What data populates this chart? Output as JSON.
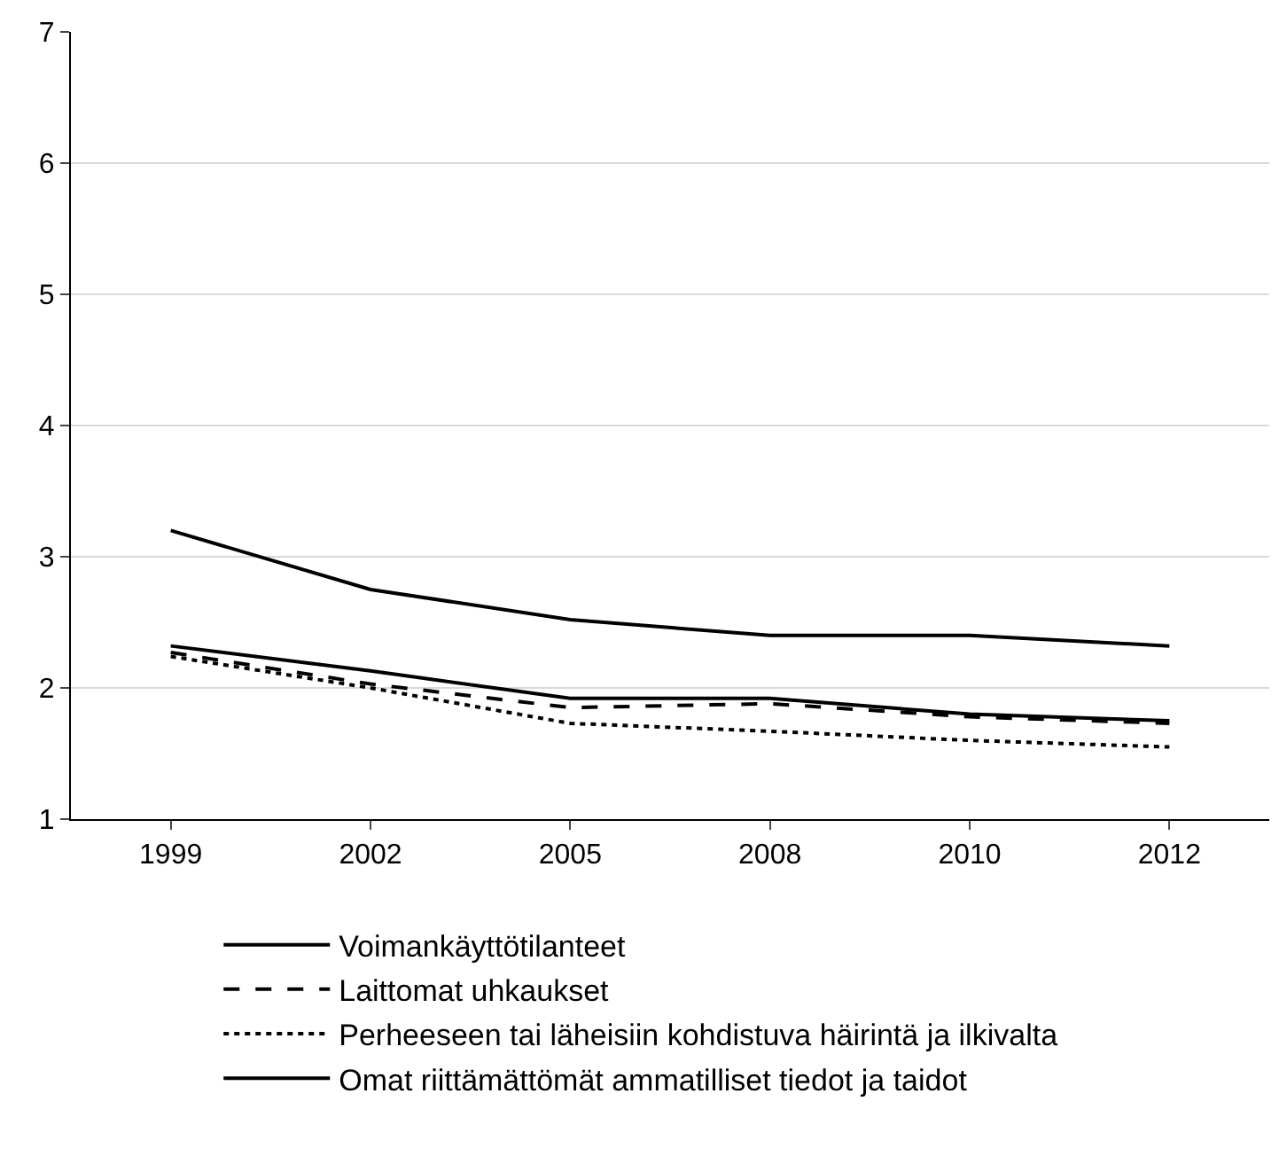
{
  "chart_data": {
    "type": "line",
    "categories": [
      "1999",
      "2002",
      "2005",
      "2008",
      "2010",
      "2012"
    ],
    "series": [
      {
        "name": "Voimankäyttötilanteet",
        "color": "#000000",
        "line_style": "solid",
        "values": [
          2.32,
          2.13,
          1.92,
          1.92,
          1.8,
          1.75
        ]
      },
      {
        "name": "Laittomat uhkaukset",
        "color": "#000000",
        "line_style": "dashed",
        "values": [
          2.27,
          2.03,
          1.85,
          1.88,
          1.78,
          1.73
        ]
      },
      {
        "name": "Perheeseen tai läheisiin kohdistuva häirintä ja ilkivalta",
        "color": "#000000",
        "line_style": "dotted",
        "values": [
          2.24,
          2.0,
          1.73,
          1.67,
          1.6,
          1.55
        ]
      },
      {
        "name": "Omat riittämättömät ammatilliset tiedot ja taidot",
        "color": "#000000",
        "line_style": "solid",
        "values": [
          3.2,
          2.75,
          2.52,
          2.4,
          2.4,
          2.32
        ]
      }
    ],
    "ylim": [
      1,
      7
    ],
    "yticks": [
      1,
      2,
      3,
      4,
      5,
      6,
      7
    ],
    "grid": "y",
    "legend": "bottom",
    "marker": "none"
  }
}
